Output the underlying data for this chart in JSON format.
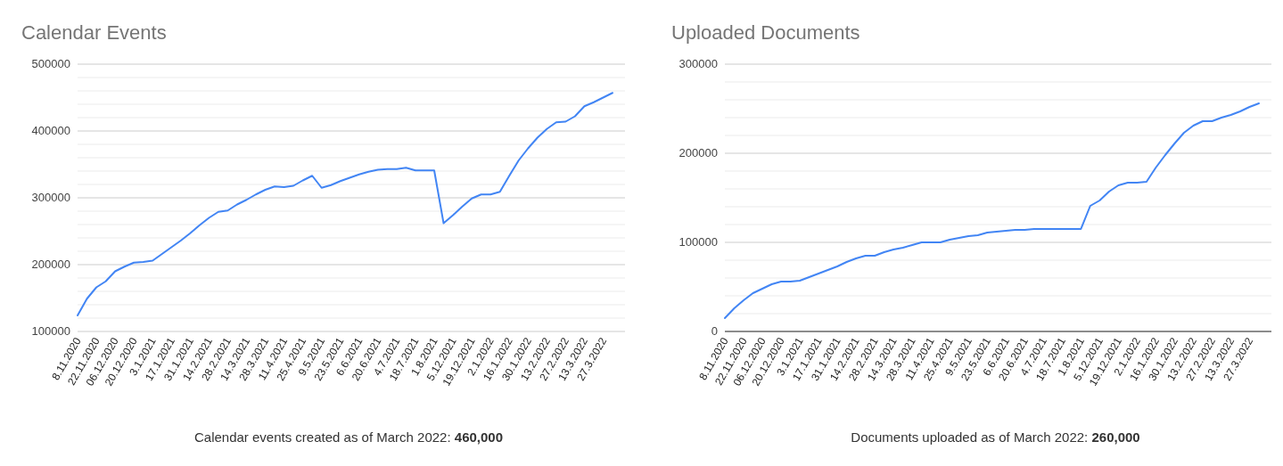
{
  "chart_data": [
    {
      "type": "line",
      "title": "Calendar Events",
      "categories": [
        "8.11.2020",
        null,
        "22.11.2020",
        null,
        "06.12.2020",
        null,
        "20.12.2020",
        null,
        "3.1.2021",
        null,
        "17.1.2021",
        null,
        "31.1.2021",
        null,
        "14.2.2021",
        null,
        "28.2.2021",
        null,
        "14.3.2021",
        null,
        "28.3.2021",
        null,
        "11.4.2021",
        null,
        "25.4.2021",
        null,
        "9.5.2021",
        null,
        "23.5.2021",
        null,
        "6.6.2021",
        null,
        "20.6.2021",
        null,
        "4.7.2021",
        null,
        "18.7.2021",
        null,
        "1.8.2021",
        null,
        "5.12.2021",
        null,
        "19.12.2021",
        null,
        "2.1.2022",
        null,
        "16.1.2022",
        null,
        "30.1.2022",
        null,
        "13.2.2022",
        null,
        "27.2.2022",
        null,
        "13.3.2022",
        null,
        "27.3.2022",
        null
      ],
      "series": [
        {
          "color": "#4285f4",
          "values": [
            124000,
            149000,
            166000,
            175000,
            190000,
            197000,
            203000,
            204000,
            206000,
            216000,
            226000,
            236000,
            247000,
            259000,
            270000,
            279000,
            281000,
            290000,
            297000,
            305000,
            312000,
            317000,
            316000,
            318000,
            326000,
            333000,
            315000,
            319000,
            325000,
            330000,
            335000,
            339000,
            342000,
            343000,
            343000,
            345000,
            341000,
            341000,
            341000,
            262000,
            274000,
            287000,
            299000,
            305000,
            305000,
            309000,
            333000,
            356000,
            374000,
            390000,
            403000,
            413000,
            414000,
            422000,
            437000,
            443000,
            450000,
            457000
          ]
        }
      ],
      "ylim": [
        100000,
        500000
      ],
      "yticks": [
        100000,
        {
          "value": 120000,
          "label": null
        },
        {
          "value": 140000,
          "label": null
        },
        {
          "value": 160000,
          "label": null
        },
        {
          "value": 180000,
          "label": null
        },
        200000,
        {
          "value": 220000,
          "label": null
        },
        {
          "value": 240000,
          "label": null
        },
        {
          "value": 260000,
          "label": null
        },
        {
          "value": 280000,
          "label": null
        },
        300000,
        {
          "value": 320000,
          "label": null
        },
        {
          "value": 340000,
          "label": null
        },
        {
          "value": 360000,
          "label": null
        },
        {
          "value": 380000,
          "label": null
        },
        400000,
        {
          "value": 420000,
          "label": null
        },
        {
          "value": 440000,
          "label": null
        },
        {
          "value": 460000,
          "label": null
        },
        {
          "value": 480000,
          "label": null
        },
        500000
      ],
      "grid": "y",
      "marker": "none",
      "line_style": "solid",
      "annotations": [
        "Calendar events created as of March 2022: 460,000"
      ]
    },
    {
      "type": "line",
      "title": "Uploaded Documents",
      "categories": [
        "8.11.2020",
        null,
        "22.11.2020",
        null,
        "06.12.2020",
        null,
        "20.12.2020",
        null,
        "3.1.2021",
        null,
        "17.1.2021",
        null,
        "31.1.2021",
        null,
        "14.2.2021",
        null,
        "28.2.2021",
        null,
        "14.3.2021",
        null,
        "28.3.2021",
        null,
        "11.4.2021",
        null,
        "25.4.2021",
        null,
        "9.5.2021",
        null,
        "23.5.2021",
        null,
        "6.6.2021",
        null,
        "20.6.2021",
        null,
        "4.7.2021",
        null,
        "18.7.2021",
        null,
        "1.8.2021",
        null,
        "5.12.2021",
        null,
        "19.12.2021",
        null,
        "2.1.2022",
        null,
        "16.1.2022",
        null,
        "30.1.2022",
        null,
        "13.2.2022",
        null,
        "27.2.2022",
        null,
        "13.3.2022",
        null,
        "27.3.2022",
        null
      ],
      "series": [
        {
          "color": "#4285f4",
          "values": [
            15000,
            26000,
            35000,
            43000,
            48000,
            53000,
            56000,
            56000,
            57000,
            61000,
            65000,
            69000,
            73000,
            78000,
            82000,
            85000,
            85000,
            89000,
            92000,
            94000,
            97000,
            100000,
            100000,
            100000,
            103000,
            105000,
            107000,
            108000,
            111000,
            112000,
            113000,
            114000,
            114000,
            115000,
            115000,
            115000,
            115000,
            115000,
            115000,
            141000,
            147000,
            157000,
            164000,
            167000,
            167000,
            168000,
            184000,
            198000,
            211000,
            223000,
            231000,
            236000,
            236000,
            240000,
            243000,
            247000,
            252000,
            256000
          ]
        }
      ],
      "ylim": [
        0,
        300000
      ],
      "yticks": [
        0,
        {
          "value": 20000,
          "label": null
        },
        {
          "value": 40000,
          "label": null
        },
        {
          "value": 60000,
          "label": null
        },
        {
          "value": 80000,
          "label": null
        },
        100000,
        {
          "value": 120000,
          "label": null
        },
        {
          "value": 140000,
          "label": null
        },
        {
          "value": 160000,
          "label": null
        },
        {
          "value": 180000,
          "label": null
        },
        200000,
        {
          "value": 220000,
          "label": null
        },
        {
          "value": 240000,
          "label": null
        },
        {
          "value": 260000,
          "label": null
        },
        {
          "value": 280000,
          "label": null
        },
        300000
      ],
      "grid": "y",
      "marker": "none",
      "line_style": "solid",
      "annotations": [
        "Documents uploaded as of March 2022: 260,000"
      ]
    }
  ]
}
